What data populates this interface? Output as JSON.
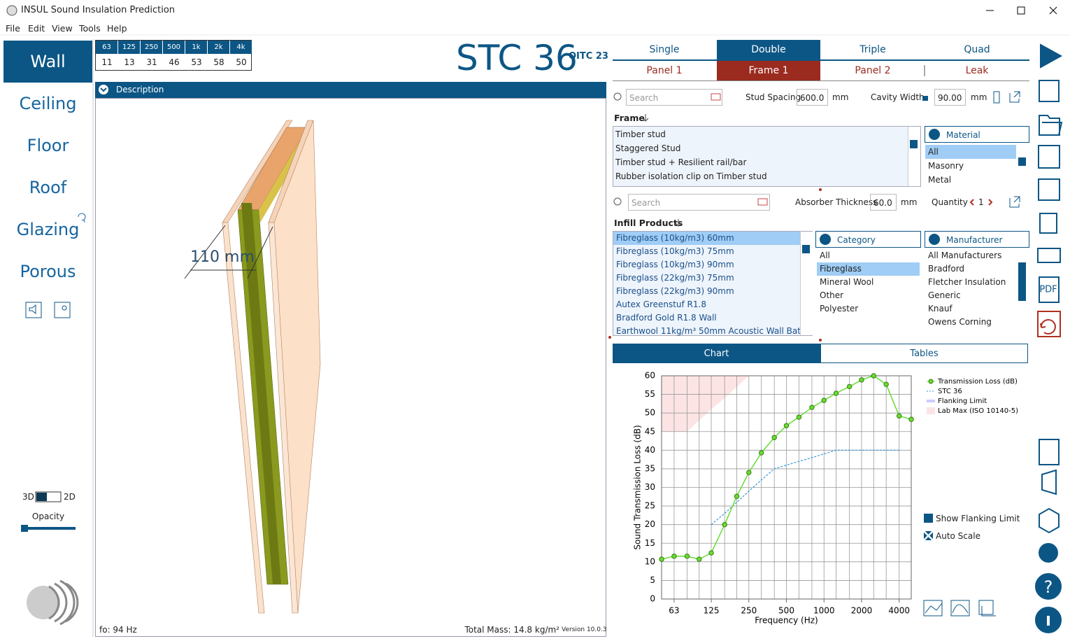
{
  "window": {
    "title": "INSUL Sound Insulation Prediction"
  },
  "menu": [
    "File",
    "Edit",
    "View",
    "Tools",
    "Help"
  ],
  "nav": [
    "Wall",
    "Ceiling",
    "Floor",
    "Roof",
    "Glazing",
    "Porous"
  ],
  "view_toggle": {
    "left": "3D",
    "right": "2D",
    "opacity": "Opacity"
  },
  "band_table": {
    "headers": [
      "63",
      "125",
      "250",
      "500",
      "1k",
      "2k",
      "4k"
    ],
    "values": [
      11,
      13,
      31,
      46,
      53,
      58,
      50
    ]
  },
  "rating": {
    "stc": "STC 36",
    "oitc": "OITC 23"
  },
  "description": "Description",
  "drawing": {
    "dimension": "110 mm",
    "fo": "fo: 94 Hz",
    "total_mass": "Total Mass: 14.8 kg/m²",
    "version": "Version 10.0.3"
  },
  "tabs": {
    "construction": [
      "Single",
      "Double",
      "Triple",
      "Quad"
    ],
    "layers": [
      "Panel 1",
      "Frame 1",
      "Panel 2",
      "Leak"
    ]
  },
  "frame_panel": {
    "search": "Search",
    "stud_spacing_label": "Stud Spacing",
    "stud_spacing": "600.0",
    "stud_unit": "mm",
    "cavity_width_label": "Cavity Width",
    "cavity_width": "90.00",
    "cavity_unit": "mm",
    "list_title": "Frame",
    "items": [
      "Timber stud",
      "Staggered Stud",
      "Timber stud + Resilient rail/bar",
      "Rubber isolation clip on Timber stud"
    ],
    "material_title": "Material",
    "materials": [
      "All",
      "Masonry",
      "Metal"
    ]
  },
  "infill_panel": {
    "search": "Search",
    "thickness_label": "Absorber Thickness",
    "thickness": "60.0",
    "thickness_unit": "mm",
    "quantity_label": "Quantity",
    "quantity": "1",
    "list_title": "Infill Products",
    "items": [
      "Fibreglass (10kg/m3) 60mm",
      "Fibreglass (10kg/m3) 75mm",
      "Fibreglass (10kg/m3) 90mm",
      "Fibreglass (22kg/m3) 75mm",
      "Fibreglass (22kg/m3) 90mm",
      "Autex Greenstuf R1.8",
      "Bradford Gold R1.8 Wall",
      "Earthwool 11kg/m³ 50mm Acoustic Wall Batt"
    ],
    "category_title": "Category",
    "categories": [
      "All",
      "Fibreglass",
      "Mineral Wool",
      "Other",
      "Polyester"
    ],
    "manufacturer_title": "Manufacturer",
    "manufacturers": [
      "All Manufacturers",
      "Bradford",
      "Fletcher Insulation",
      "Generic",
      "Knauf",
      "Owens Corning"
    ]
  },
  "result_tabs": [
    "Chart",
    "Tables"
  ],
  "options": [
    "Show Flanking Limit",
    "Auto Scale"
  ],
  "toolbar": {
    "pdf": "PDF"
  },
  "chart_data": {
    "type": "line",
    "x_label": "Frequency (Hz)",
    "y_label": "Sound Transmission Loss (dB)",
    "x": [
      50,
      63,
      80,
      100,
      125,
      160,
      200,
      250,
      315,
      400,
      500,
      630,
      800,
      1000,
      1250,
      1600,
      2000,
      2500,
      3150,
      4000,
      5000
    ],
    "log_x": true,
    "xlim": [
      50,
      5000
    ],
    "xticks": [
      63,
      125,
      250,
      500,
      1000,
      2000,
      4000
    ],
    "ylim": [
      0,
      60
    ],
    "yticks": [
      0,
      5,
      10,
      15,
      20,
      25,
      30,
      35,
      40,
      45,
      50,
      55,
      60
    ],
    "grid": true,
    "series": [
      {
        "name": "Transmission Loss (dB)",
        "color": "#66dd33",
        "style": "markers",
        "values": [
          10.7,
          11.5,
          11.5,
          10.7,
          12.4,
          20,
          27.6,
          34,
          39.3,
          43.4,
          46.6,
          48.9,
          51.5,
          53.4,
          55.3,
          57.1,
          58.9,
          60,
          57.7,
          49.2,
          48.3
        ]
      },
      {
        "name": "STC 36",
        "color": "#3399dd",
        "style": "dashed",
        "values": [
          null,
          null,
          null,
          null,
          20,
          23,
          26,
          29,
          32,
          35,
          36,
          37,
          38,
          39,
          40,
          40,
          40,
          40,
          40,
          40,
          null
        ]
      },
      {
        "name": "Flanking Limit",
        "color": "#ccccff",
        "style": "line",
        "values": [
          null,
          null,
          null,
          null,
          null,
          null,
          null,
          null,
          null,
          null,
          null,
          null,
          null,
          null,
          null,
          null,
          null,
          null,
          null,
          null,
          null
        ]
      },
      {
        "name": "Lab Max (ISO 10140-5)",
        "color": "#fde4e4",
        "style": "band",
        "values": [
          45,
          45,
          45,
          48,
          51,
          54,
          57,
          60,
          null,
          null,
          null,
          null,
          null,
          null,
          null,
          null,
          null,
          null,
          null,
          null,
          null
        ]
      }
    ]
  }
}
